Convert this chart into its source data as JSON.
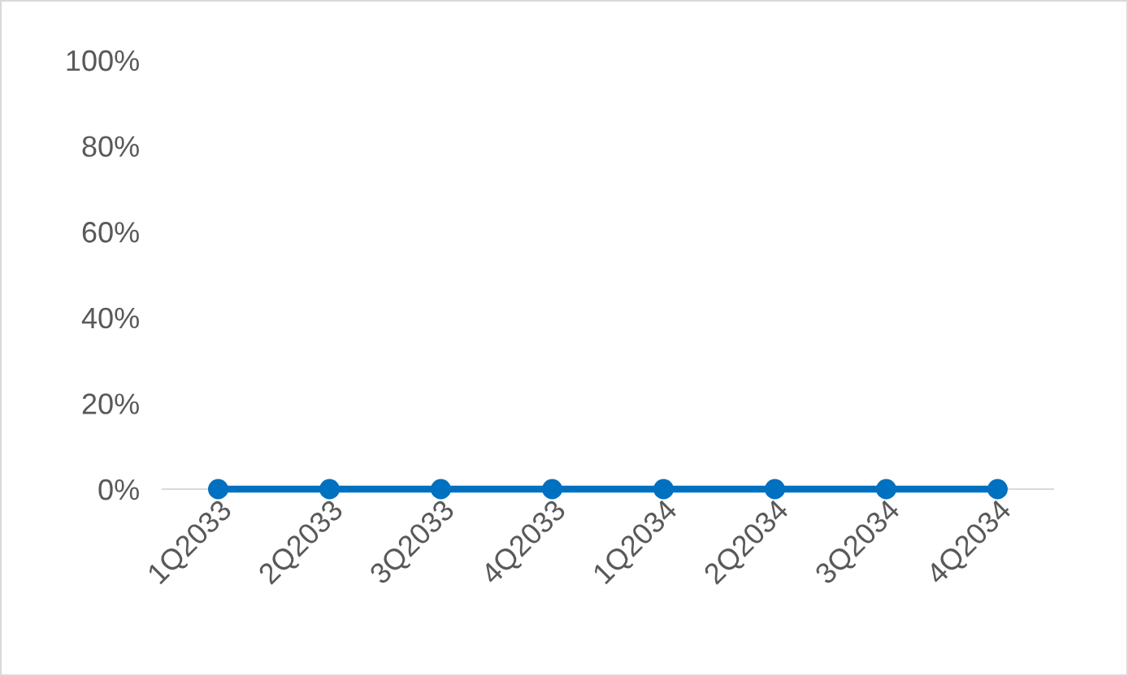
{
  "chart_data": {
    "type": "line",
    "categories": [
      "1Q2033",
      "2Q2033",
      "3Q2033",
      "4Q2033",
      "1Q2034",
      "2Q2034",
      "3Q2034",
      "4Q2034"
    ],
    "series": [
      {
        "color": "#0070c0",
        "values": [
          0,
          0,
          0,
          0,
          0,
          0,
          0,
          0
        ]
      }
    ],
    "ylim": [
      0,
      100
    ],
    "yticks": [
      {
        "value": 0,
        "label": "0%"
      },
      {
        "value": 20,
        "label": "20%"
      },
      {
        "value": 40,
        "label": "40%"
      },
      {
        "value": 60,
        "label": "60%"
      },
      {
        "value": 80,
        "label": "80%"
      },
      {
        "value": 100,
        "label": "100%"
      }
    ],
    "marker": "circle",
    "line_style": "solid",
    "grid": false,
    "legend": false
  }
}
